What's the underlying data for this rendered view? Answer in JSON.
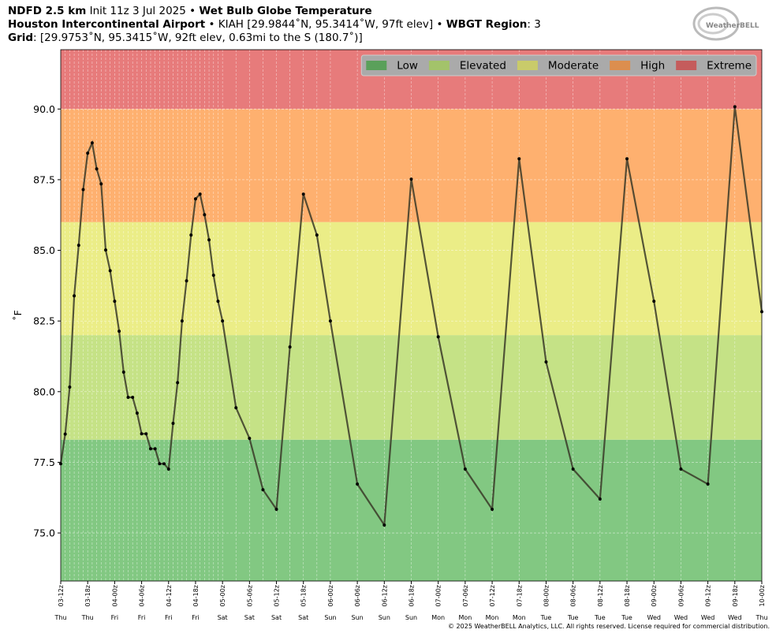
{
  "header": {
    "line1": [
      {
        "text": "NDFD 2.5 km",
        "bold": true
      },
      {
        "text": " Init 11z 3 Jul 2025 • ",
        "bold": false
      },
      {
        "text": "Wet Bulb Globe Temperature",
        "bold": true
      }
    ],
    "line2": [
      {
        "text": "Houston Intercontinental Airport",
        "bold": true
      },
      {
        "text": " • KIAH [29.9844˚N, 95.3414˚W, 97ft elev] • ",
        "bold": false
      },
      {
        "text": "WBGT Region",
        "bold": true
      },
      {
        "text": ": 3",
        "bold": false
      }
    ],
    "line3": [
      {
        "text": "Grid",
        "bold": true
      },
      {
        "text": ": [29.9753˚N, 95.3415˚W, 92ft elev, 0.63mi to the S (180.7˚)]",
        "bold": false
      }
    ],
    "logo": "WeatherBELL"
  },
  "footer": "© 2025 WeatherBELL Analytics, LLC. All rights reserved. License required for commercial distribution.",
  "chart_data": {
    "type": "line",
    "ylabel": "˚F",
    "ylim": [
      73.3,
      92.1
    ],
    "yticks": [
      {
        "value": 75,
        "label": "75.0"
      },
      {
        "value": 77.5,
        "label": "77.5"
      },
      {
        "value": 80,
        "label": "80.0"
      },
      {
        "value": 82.5,
        "label": "82.5"
      },
      {
        "value": 85,
        "label": "85.0"
      },
      {
        "value": 87.5,
        "label": "87.5"
      },
      {
        "value": 90,
        "label": "90.0"
      }
    ],
    "xlim": [
      "03-12z",
      "10-00z"
    ],
    "xticks": [
      "03-12z",
      "03-18z",
      "04-00z",
      "04-06z",
      "04-12z",
      "04-18z",
      "05-00z",
      "05-06z",
      "05-12z",
      "05-18z",
      "06-00z",
      "06-06z",
      "06-12z",
      "06-18z",
      "07-00z",
      "07-06z",
      "07-12z",
      "07-18z",
      "08-00z",
      "08-06z",
      "08-12z",
      "08-18z",
      "09-00z",
      "09-06z",
      "09-12z",
      "09-18z",
      "10-00z"
    ],
    "xtick_days": [
      "Thu",
      "Thu",
      "Fri",
      "Fri",
      "Fri",
      "Fri",
      "Sat",
      "Sat",
      "Sat",
      "Sat",
      "Sun",
      "Sun",
      "Sun",
      "Sun",
      "Mon",
      "Mon",
      "Mon",
      "Mon",
      "Tue",
      "Tue",
      "Tue",
      "Tue",
      "Wed",
      "Wed",
      "Wed",
      "Wed",
      "Thu"
    ],
    "grid": true,
    "legend": "upper right",
    "bands": [
      {
        "name": "Low",
        "color": "#82c882",
        "legend_color": "#5aa05a"
      },
      {
        "name": "Elevated",
        "color": "#c5e286",
        "legend_color": "#a3c36a"
      },
      {
        "name": "Moderate",
        "color": "#ebed87",
        "legend_color": "#c9cb6a"
      },
      {
        "name": "High",
        "color": "#feb06f",
        "legend_color": "#dc8e4e"
      },
      {
        "name": "Extreme",
        "color": "#e77b7b",
        "legend_color": "#c55c5c"
      }
    ],
    "thresholds": [
      78.3,
      82,
      86,
      90
    ],
    "series": [
      {
        "color": "#3a3a28",
        "x": [
          "03-12z",
          "03-13z",
          "03-14z",
          "03-15z",
          "03-16z",
          "03-17z",
          "03-18z",
          "03-19z",
          "03-20z",
          "03-21z",
          "03-22z",
          "03-23z",
          "04-00z",
          "04-01z",
          "04-02z",
          "04-03z",
          "04-04z",
          "04-05z",
          "04-06z",
          "04-07z",
          "04-08z",
          "04-09z",
          "04-10z",
          "04-11z",
          "04-12z",
          "04-13z",
          "04-14z",
          "04-15z",
          "04-16z",
          "04-17z",
          "04-18z",
          "04-19z",
          "04-20z",
          "04-21z",
          "04-22z",
          "04-23z",
          "05-00z",
          "05-03z",
          "05-06z",
          "05-09z",
          "05-12z",
          "05-15z",
          "05-18z",
          "05-21z",
          "06-00z",
          "06-06z",
          "06-12z",
          "06-18z",
          "07-00z",
          "07-06z",
          "07-12z",
          "07-18z",
          "08-00z",
          "08-06z",
          "08-12z",
          "08-18z",
          "09-00z",
          "09-06z",
          "09-12z",
          "09-18z",
          "10-00z"
        ],
        "values": [
          77.45,
          78.5,
          80.16,
          83.39,
          85.18,
          87.15,
          88.44,
          88.8,
          87.88,
          87.35,
          85.01,
          84.28,
          83.2,
          82.14,
          80.69,
          79.8,
          79.8,
          79.24,
          78.51,
          78.51,
          77.98,
          77.98,
          77.45,
          77.45,
          77.26,
          78.88,
          80.32,
          82.5,
          83.92,
          85.54,
          86.82,
          86.99,
          86.26,
          85.37,
          84.12,
          83.2,
          82.5,
          79.43,
          78.35,
          76.53,
          75.84,
          81.58,
          86.99,
          85.54,
          82.5,
          76.73,
          75.28,
          87.52,
          81.94,
          77.26,
          75.84,
          88.24,
          81.05,
          77.26,
          76.2,
          88.24,
          83.2,
          77.26,
          76.73,
          90.08,
          82.83
        ]
      }
    ]
  }
}
